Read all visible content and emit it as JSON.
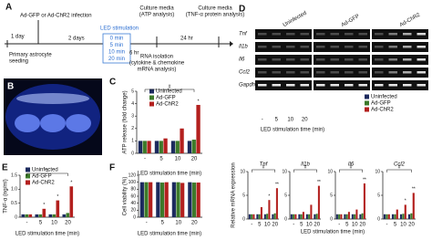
{
  "timeline": {
    "label": "A",
    "infection": "Ad-GFP or Ad-ChR2 infection",
    "day1": "1 day",
    "days2": "2 days",
    "led": "LED stimulation",
    "times": [
      "0 min",
      "5 min",
      "10 min",
      "20 min"
    ],
    "media1": [
      "Culture media",
      "(ATP analysis)"
    ],
    "media2": [
      "Culture media",
      "(TNF-α protein analysis)"
    ],
    "hr6": "6 hr",
    "hr24": "24 hr",
    "seeding": [
      "Primary astrocyte",
      "seeding"
    ],
    "rna": [
      "RNA isolation",
      "(cytokine & chemokine",
      "mRNA analysis)"
    ]
  },
  "photo": {
    "label": "B"
  },
  "gel": {
    "label": "D",
    "groups": [
      "Uninfected",
      "Ad-GFP",
      "Ad-ChR2"
    ],
    "rows": [
      "Tnf",
      "Il1b",
      "Il6",
      "Ccl2",
      "Gapdh"
    ],
    "lanes": [
      "-",
      "5",
      "10",
      "20"
    ],
    "xlabel": "LED stimulation time (min)"
  },
  "chart_data": [
    {
      "type": "bar",
      "label": "C",
      "ylabel": "ATP release (fold change)",
      "xlabel": "LED stimulation time (min)",
      "categories": [
        "-",
        "5",
        "10",
        "20"
      ],
      "series": [
        {
          "name": "Uninfected",
          "color": "#1c2a5e",
          "values": [
            1,
            1,
            1,
            1
          ]
        },
        {
          "name": "Ad-GFP",
          "color": "#3d7a2a",
          "values": [
            1,
            1,
            1,
            1.1
          ]
        },
        {
          "name": "Ad-ChR2",
          "color": "#b3201e",
          "values": [
            1,
            1.2,
            2,
            3.9
          ]
        }
      ],
      "ylim": [
        0,
        5
      ],
      "yticks": [
        0,
        1,
        2,
        3,
        4,
        5
      ],
      "legend": true,
      "annotations": [
        "#",
        "*"
      ]
    },
    {
      "type": "bar",
      "title": "Tnf",
      "ylabel": "Relative mRNA expression",
      "xlabel": "LED stimulation time (min)",
      "categories": [
        "-",
        "5",
        "10",
        "20"
      ],
      "series": [
        {
          "name": "Uninfected",
          "color": "#1c2a5e",
          "values": [
            1,
            1,
            1,
            1
          ]
        },
        {
          "name": "Ad-GFP",
          "color": "#3d7a2a",
          "values": [
            1,
            1,
            1.1,
            1.2
          ]
        },
        {
          "name": "Ad-ChR2",
          "color": "#b3201e",
          "values": [
            1,
            2.5,
            4,
            6.5
          ]
        }
      ],
      "ylim": [
        0,
        10
      ],
      "yticks": [
        0,
        5,
        10
      ],
      "legend": true,
      "annotations": [
        "#",
        "*",
        "**"
      ]
    },
    {
      "type": "bar",
      "title": "Il1b",
      "categories": [
        "-",
        "5",
        "10",
        "20"
      ],
      "series": [
        {
          "name": "Uninfected",
          "color": "#1c2a5e",
          "values": [
            1,
            1,
            1,
            1
          ]
        },
        {
          "name": "Ad-GFP",
          "color": "#3d7a2a",
          "values": [
            1,
            1,
            1,
            1.1
          ]
        },
        {
          "name": "Ad-ChR2",
          "color": "#b3201e",
          "values": [
            1,
            1.5,
            3,
            7
          ]
        }
      ],
      "ylim": [
        0,
        10
      ],
      "yticks": [
        0,
        5,
        10
      ],
      "annotations": [
        "#",
        "**"
      ]
    },
    {
      "type": "bar",
      "title": "Il6",
      "categories": [
        "-",
        "5",
        "10",
        "20"
      ],
      "series": [
        {
          "name": "Uninfected",
          "color": "#1c2a5e",
          "values": [
            1,
            1,
            1,
            1
          ]
        },
        {
          "name": "Ad-GFP",
          "color": "#3d7a2a",
          "values": [
            1,
            1,
            1,
            1.2
          ]
        },
        {
          "name": "Ad-ChR2",
          "color": "#b3201e",
          "values": [
            1,
            1.5,
            2,
            7.5
          ]
        }
      ],
      "ylim": [
        0,
        10
      ],
      "yticks": [
        0,
        5,
        10
      ],
      "annotations": [
        "#",
        "**"
      ]
    },
    {
      "type": "bar",
      "title": "Ccl2",
      "categories": [
        "-",
        "5",
        "10",
        "20"
      ],
      "series": [
        {
          "name": "Uninfected",
          "color": "#1c2a5e",
          "values": [
            1,
            1,
            1,
            1
          ]
        },
        {
          "name": "Ad-GFP",
          "color": "#3d7a2a",
          "values": [
            1,
            1,
            1.1,
            1.2
          ]
        },
        {
          "name": "Ad-ChR2",
          "color": "#b3201e",
          "values": [
            1,
            2,
            3,
            5.5
          ]
        }
      ],
      "ylim": [
        0,
        10
      ],
      "yticks": [
        0,
        5,
        10
      ],
      "annotations": [
        "#",
        "*",
        "**"
      ]
    },
    {
      "type": "bar",
      "label": "E",
      "ylabel": "TNF-α (ng/ml)",
      "xlabel": "LED stimulation time (min)",
      "categories": [
        "-",
        "5",
        "10",
        "20"
      ],
      "series": [
        {
          "name": "Uninfected",
          "color": "#1c2a5e",
          "values": [
            0.1,
            0.1,
            0.1,
            0.1
          ]
        },
        {
          "name": "Ad-GFP",
          "color": "#3d7a2a",
          "values": [
            0.1,
            0.1,
            0.1,
            0.15
          ]
        },
        {
          "name": "Ad-ChR2",
          "color": "#b3201e",
          "values": [
            0.1,
            0.3,
            0.6,
            1.1
          ]
        }
      ],
      "ylim": [
        0,
        1.5
      ],
      "yticks": [
        0,
        0.5,
        {
          "value": 1,
          "label": "1.0"
        },
        1.5
      ],
      "legend": true,
      "annotations": [
        "#",
        "*",
        "*",
        "*"
      ]
    },
    {
      "type": "bar",
      "label": "F",
      "ylabel": "Cell viability (%)",
      "xlabel": "LED stimulation time (min)",
      "categories": [
        "-",
        "5",
        "10",
        "20"
      ],
      "series": [
        {
          "name": "Uninfected",
          "color": "#1c2a5e",
          "values": [
            100,
            100,
            100,
            100
          ]
        },
        {
          "name": "Ad-GFP",
          "color": "#3d7a2a",
          "values": [
            100,
            99,
            100,
            99
          ]
        },
        {
          "name": "Ad-ChR2",
          "color": "#b3201e",
          "values": [
            100,
            100,
            98,
            99
          ]
        }
      ],
      "ylim": [
        0,
        120
      ],
      "yticks": [
        0,
        20,
        40,
        60,
        80,
        100,
        120
      ]
    }
  ]
}
